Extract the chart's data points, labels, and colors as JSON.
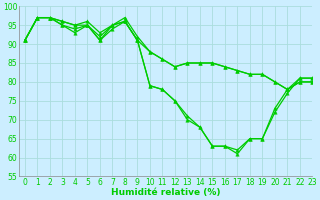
{
  "xlabel": "Humidité relative (%)",
  "background_color": "#cceeff",
  "grid_color": "#aadddd",
  "line_color": "#00cc00",
  "x": [
    0,
    1,
    2,
    3,
    4,
    5,
    6,
    7,
    8,
    9,
    10,
    11,
    12,
    13,
    14,
    15,
    16,
    17,
    18,
    19,
    20,
    21,
    22,
    23
  ],
  "series": [
    [
      91,
      97,
      97,
      96,
      95,
      96,
      93,
      95,
      97,
      92,
      88,
      86,
      84,
      85,
      85,
      85,
      84,
      83,
      82,
      82,
      80,
      78,
      80,
      80
    ],
    [
      91,
      97,
      97,
      95,
      94,
      95,
      91,
      95,
      96,
      91,
      88,
      86,
      84,
      85,
      85,
      85,
      84,
      83,
      82,
      82,
      80,
      78,
      80,
      80
    ],
    [
      91,
      97,
      97,
      95,
      93,
      95,
      91,
      94,
      96,
      91,
      79,
      78,
      75,
      71,
      68,
      63,
      63,
      62,
      65,
      65,
      73,
      78,
      81,
      81
    ],
    [
      91,
      97,
      97,
      96,
      95,
      95,
      92,
      95,
      96,
      91,
      79,
      78,
      75,
      70,
      68,
      63,
      63,
      61,
      65,
      65,
      72,
      77,
      81,
      81
    ]
  ],
  "ylim": [
    55,
    100
  ],
  "xlim": [
    -0.5,
    23
  ],
  "yticks": [
    55,
    60,
    65,
    70,
    75,
    80,
    85,
    90,
    95,
    100
  ],
  "xticks": [
    0,
    1,
    2,
    3,
    4,
    5,
    6,
    7,
    8,
    9,
    10,
    11,
    12,
    13,
    14,
    15,
    16,
    17,
    18,
    19,
    20,
    21,
    22,
    23
  ],
  "tick_fontsize": 5.5,
  "xlabel_fontsize": 6.5,
  "linewidth": 0.9,
  "markersize": 2.5
}
